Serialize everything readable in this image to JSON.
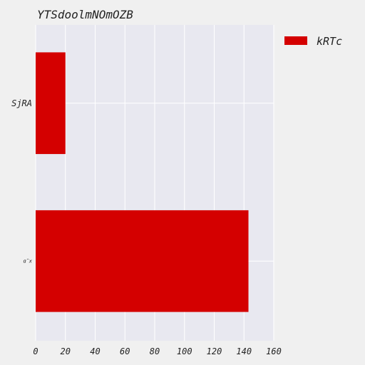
{
  "chart_data": {
    "type": "bar",
    "orientation": "horizontal",
    "title": "YTSdoolmNOmOZB",
    "xlabel": "",
    "ylabel": "",
    "categories": [
      "SjRA",
      "ɑ̃x"
    ],
    "series": [
      {
        "name": "kRTc",
        "values": [
          20,
          143
        ],
        "color": "#d40000"
      }
    ],
    "xlim": [
      0,
      160
    ],
    "xticks": [
      0,
      20,
      40,
      60,
      80,
      100,
      120,
      140,
      160
    ],
    "xtick_labels": [
      "0",
      "20",
      "40",
      "60",
      "80",
      "100",
      "120",
      "140",
      "160"
    ],
    "grid": true,
    "legend_position": "upper-right-outside",
    "colors": {
      "figure_background": "#f0f0f0",
      "axes_background": "#e8e8f0",
      "gridline": "#ffffff",
      "text": "#222222"
    }
  }
}
